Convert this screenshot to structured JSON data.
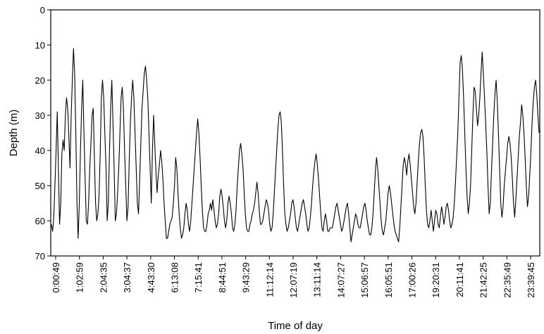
{
  "chart_data": {
    "type": "line",
    "xlabel": "Time of day",
    "ylabel": "Depth (m)",
    "ylim": [
      0,
      70
    ],
    "y_inverted": true,
    "y_ticks": [
      0,
      10,
      20,
      30,
      40,
      50,
      60,
      70
    ],
    "x_tick_labels": [
      "0:00:49",
      "1:02:59",
      "2:04:35",
      "3:04:37",
      "4:43:30",
      "6:13:08",
      "7:15:41",
      "8:44:51",
      "9:43:29",
      "11:12:14",
      "12:07:19",
      "13:11:14",
      "14:07:27",
      "15:06:57",
      "16:05:51",
      "17:00:26",
      "19:20:31",
      "20:11:41",
      "21:42:25",
      "22:35:49",
      "23:39:45"
    ],
    "grid": false,
    "legend": "none",
    "line_color": "#000000",
    "series": [
      {
        "values": [
          61,
          63,
          59,
          50,
          40,
          29,
          45,
          61,
          55,
          41,
          37,
          40,
          30,
          25,
          28,
          36,
          45,
          30,
          20,
          11,
          18,
          35,
          55,
          65,
          55,
          40,
          28,
          20,
          35,
          48,
          60,
          61,
          55,
          45,
          38,
          30,
          28,
          42,
          55,
          60,
          58,
          53,
          41,
          25,
          20,
          25,
          35,
          45,
          60,
          55,
          40,
          28,
          20,
          32,
          45,
          60,
          58,
          52,
          45,
          35,
          25,
          22,
          28,
          40,
          50,
          60,
          56,
          43,
          32,
          25,
          20,
          25,
          35,
          45,
          55,
          58,
          48,
          38,
          28,
          23,
          18,
          16,
          20,
          25,
          35,
          45,
          55,
          40,
          30,
          38,
          46,
          52,
          47,
          44,
          40,
          43,
          48,
          55,
          60,
          65,
          65,
          63,
          61,
          60,
          59,
          55,
          50,
          42,
          45,
          52,
          58,
          62,
          65,
          64,
          62,
          58,
          55,
          57,
          61,
          63,
          60,
          55,
          50,
          45,
          40,
          35,
          31,
          35,
          42,
          50,
          57,
          62,
          63,
          63,
          61,
          58,
          57,
          55,
          57,
          54,
          57,
          60,
          62,
          61,
          58,
          53,
          51,
          53,
          56,
          60,
          62,
          60,
          55,
          53,
          55,
          58,
          62,
          63,
          61,
          57,
          50,
          45,
          40,
          38,
          41,
          45,
          52,
          58,
          62,
          63,
          63,
          61,
          60,
          58,
          57,
          55,
          52,
          49,
          52,
          57,
          61,
          61,
          60,
          58,
          56,
          54,
          55,
          57,
          61,
          63,
          62,
          58,
          52,
          46,
          40,
          34,
          30,
          29,
          32,
          40,
          50,
          58,
          61,
          63,
          62,
          60,
          58,
          55,
          54,
          56,
          59,
          62,
          63,
          61,
          59,
          57,
          55,
          54,
          56,
          58,
          61,
          63,
          62,
          59,
          55,
          50,
          46,
          43,
          41,
          44,
          48,
          53,
          58,
          62,
          63,
          60,
          58,
          60,
          63,
          63,
          62,
          62,
          62,
          60,
          58,
          56,
          55,
          57,
          59,
          61,
          63,
          62,
          60,
          58,
          56,
          55,
          58,
          62,
          66,
          64,
          62,
          60,
          58,
          59,
          61,
          62,
          62,
          60,
          58,
          56,
          55,
          57,
          60,
          62,
          64,
          64,
          62,
          58,
          52,
          46,
          42,
          45,
          50,
          55,
          60,
          63,
          64,
          62,
          60,
          56,
          52,
          50,
          52,
          55,
          58,
          61,
          63,
          64,
          65,
          66,
          62,
          56,
          50,
          44,
          42,
          44,
          47,
          43,
          41,
          44,
          48,
          52,
          56,
          58,
          55,
          49,
          43,
          38,
          35,
          34,
          36,
          42,
          50,
          57,
          61,
          62,
          60,
          57,
          60,
          63,
          60,
          57,
          58,
          61,
          62,
          59,
          56,
          58,
          61,
          59,
          56,
          55,
          57,
          60,
          62,
          61,
          59,
          55,
          49,
          42,
          35,
          25,
          15,
          13,
          17,
          25,
          35,
          45,
          53,
          58,
          55,
          50,
          40,
          30,
          22,
          23,
          28,
          33,
          30,
          25,
          18,
          12,
          18,
          25,
          32,
          40,
          50,
          58,
          55,
          46,
          38,
          30,
          24,
          20,
          26,
          35,
          45,
          55,
          59,
          56,
          50,
          46,
          42,
          38,
          36,
          38,
          42,
          48,
          55,
          59,
          54,
          48,
          42,
          36,
          32,
          27,
          30,
          35,
          42,
          50,
          56,
          53,
          47,
          40,
          32,
          26,
          22,
          20,
          24,
          30,
          35
        ]
      }
    ]
  }
}
